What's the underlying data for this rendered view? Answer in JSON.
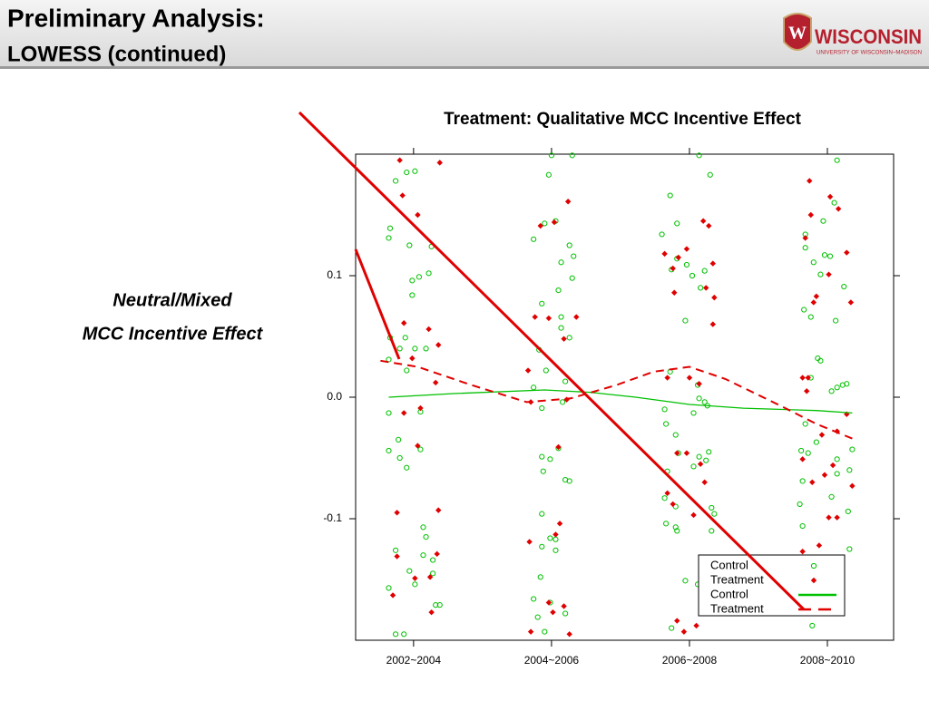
{
  "header": {
    "title": "Preliminary Analysis:",
    "subtitle": "LOWESS (continued)",
    "logo_mark": "W",
    "logo_name": "WISCONSIN",
    "logo_sub": "UNIVERSITY OF WISCONSIN–MADISON"
  },
  "side_note": [
    "Neutral/Mixed",
    "MCC  Incentive Effect"
  ],
  "chart_data": {
    "type": "scatter",
    "title": "Treatment: Qualitative MCC Incentive Effect",
    "xlim": [
      0.58,
      4.48
    ],
    "xticks": [
      {
        "value": 1,
        "label": "2002~2004"
      },
      {
        "value": 2,
        "label": "2004~2006"
      },
      {
        "value": 3,
        "label": "2006~2008"
      },
      {
        "value": 4,
        "label": "2008~2010"
      }
    ],
    "ylim": [
      -0.2,
      0.2
    ],
    "yticks": [
      -0.1,
      {
        "value": 0,
        "label": "0.0"
      },
      0.1
    ],
    "legend": "lower right",
    "series": [
      {
        "name": "Control",
        "type": "scatter",
        "marker": "circle",
        "color": "#00c000",
        "x": [
          0.87,
          0.95,
          1.01,
          0.83,
          0.82,
          0.97,
          1.13,
          1.04,
          0.99,
          1.11,
          0.99,
          0.83,
          0.94,
          0.9,
          1.01,
          1.09,
          0.82,
          0.95,
          0.82,
          1.05,
          0.89,
          0.82,
          1.05,
          0.9,
          0.95,
          1.07,
          1.09,
          0.87,
          1.07,
          1.14,
          0.97,
          1.14,
          0.82,
          1.01,
          1.16,
          1.19,
          0.87,
          0.93,
          2,
          2.15,
          1.98,
          1.87,
          1.95,
          2.03,
          2.13,
          2.07,
          2.15,
          2.05,
          2.16,
          1.93,
          2.07,
          2.07,
          2.13,
          1.91,
          1.96,
          2.1,
          1.87,
          2.08,
          1.93,
          2.05,
          1.93,
          1.99,
          1.94,
          2.1,
          2.13,
          1.93,
          2.03,
          1.99,
          1.93,
          2.03,
          1.92,
          1.87,
          1.99,
          2.1,
          1.9,
          1.95,
          3.07,
          3.15,
          2.86,
          2.91,
          2.8,
          2.91,
          2.98,
          3.11,
          3.02,
          2.87,
          3.08,
          2.97,
          2.86,
          3.06,
          3.07,
          3.11,
          3.13,
          3.03,
          2.82,
          2.9,
          2.83,
          2.92,
          3.07,
          3.12,
          3.03,
          2.84,
          3.14,
          2.82,
          2.9,
          3.16,
          3.18,
          2.83,
          2.91,
          3.16,
          2.9,
          2.97,
          3.06,
          2.87,
          4.07,
          4.05,
          3.97,
          3.84,
          3.84,
          3.98,
          4.02,
          3.9,
          3.95,
          4.12,
          3.83,
          3.88,
          4.06,
          3.93,
          3.95,
          4.03,
          4.07,
          4.11,
          4.14,
          3.88,
          3.84,
          3.81,
          3.86,
          3.92,
          4.18,
          4.07,
          4.16,
          3.82,
          4.07,
          4.03,
          3.8,
          4.15,
          3.82,
          3.9,
          4.16,
          3.89
        ],
        "values": [
          0.178,
          0.185,
          0.186,
          0.139,
          0.131,
          0.125,
          0.124,
          0.099,
          0.096,
          0.102,
          0.084,
          0.049,
          0.049,
          0.04,
          0.04,
          0.04,
          0.031,
          0.022,
          -0.013,
          -0.012,
          -0.035,
          -0.044,
          -0.043,
          -0.05,
          -0.058,
          -0.107,
          -0.115,
          -0.126,
          -0.13,
          -0.134,
          -0.143,
          -0.145,
          -0.157,
          -0.154,
          -0.171,
          -0.171,
          -0.195,
          -0.195,
          0.199,
          0.199,
          0.183,
          0.13,
          0.143,
          0.145,
          0.125,
          0.111,
          0.098,
          0.088,
          0.116,
          0.077,
          0.066,
          0.057,
          0.049,
          0.039,
          0.022,
          0.013,
          0.008,
          -0.004,
          -0.009,
          -0.042,
          -0.049,
          -0.051,
          -0.061,
          -0.068,
          -0.069,
          -0.096,
          -0.117,
          -0.116,
          -0.123,
          -0.126,
          -0.148,
          -0.166,
          -0.169,
          -0.178,
          -0.181,
          -0.193,
          0.199,
          0.183,
          0.166,
          0.143,
          0.134,
          0.114,
          0.109,
          0.104,
          0.1,
          0.105,
          0.09,
          0.063,
          0.021,
          0.01,
          -0.001,
          -0.004,
          -0.007,
          -0.013,
          -0.01,
          -0.031,
          -0.022,
          -0.046,
          -0.049,
          -0.052,
          -0.057,
          -0.061,
          -0.045,
          -0.083,
          -0.09,
          -0.091,
          -0.096,
          -0.104,
          -0.11,
          -0.11,
          -0.107,
          -0.151,
          -0.154,
          -0.19,
          0.195,
          0.16,
          0.145,
          0.134,
          0.123,
          0.117,
          0.116,
          0.111,
          0.101,
          0.091,
          0.072,
          0.066,
          0.063,
          0.032,
          0.03,
          0.005,
          0.008,
          0.01,
          0.011,
          0.016,
          -0.022,
          -0.044,
          -0.046,
          -0.037,
          -0.043,
          -0.051,
          -0.06,
          -0.069,
          -0.063,
          -0.082,
          -0.088,
          -0.094,
          -0.106,
          -0.136,
          -0.125,
          -0.188
        ]
      },
      {
        "name": "Treatment",
        "type": "scatter",
        "marker": "diamond",
        "color": "#e00000",
        "x": [
          0.9,
          1.19,
          0.92,
          1.03,
          0.93,
          1.11,
          1.18,
          0.99,
          1.16,
          0.93,
          1.05,
          1.03,
          0.88,
          1.18,
          0.88,
          1.17,
          1.01,
          1.12,
          0.85,
          1.13,
          2.12,
          1.92,
          2.02,
          1.88,
          1.98,
          2.18,
          2.09,
          1.83,
          1.85,
          2.11,
          2.05,
          2.06,
          1.84,
          2.03,
          1.98,
          2.09,
          2.01,
          1.85,
          2.13,
          2.98,
          2.82,
          2.92,
          3.1,
          3.14,
          3.17,
          2.88,
          3.12,
          2.89,
          3.18,
          3.17,
          3,
          2.84,
          3.07,
          2.91,
          2.98,
          3.08,
          3.11,
          2.84,
          2.88,
          3.03,
          2.91,
          3.05,
          2.96,
          3.87,
          4.02,
          3.88,
          4.08,
          3.84,
          4.14,
          4.01,
          3.92,
          3.9,
          4.17,
          3.82,
          3.86,
          3.85,
          4.14,
          3.96,
          4.07,
          3.82,
          4.04,
          3.98,
          4.18,
          3.89,
          4.01,
          4.07,
          3.82,
          3.94
        ],
        "values": [
          0.195,
          0.193,
          0.166,
          0.15,
          0.061,
          0.056,
          0.043,
          0.032,
          0.012,
          -0.013,
          -0.009,
          -0.04,
          -0.095,
          -0.093,
          -0.131,
          -0.129,
          -0.149,
          -0.148,
          -0.163,
          -0.177,
          0.161,
          0.141,
          0.144,
          0.066,
          0.065,
          0.066,
          0.048,
          0.022,
          -0.004,
          -0.002,
          -0.041,
          -0.104,
          -0.119,
          -0.113,
          -0.169,
          -0.172,
          -0.177,
          -0.193,
          -0.195,
          0.122,
          0.118,
          0.115,
          0.145,
          0.141,
          0.11,
          0.106,
          0.09,
          0.086,
          0.082,
          0.06,
          0.016,
          0.016,
          0.011,
          -0.046,
          -0.046,
          -0.055,
          -0.07,
          -0.079,
          -0.088,
          -0.097,
          -0.184,
          -0.188,
          -0.193,
          0.178,
          0.165,
          0.15,
          0.155,
          0.131,
          0.119,
          0.101,
          0.083,
          0.078,
          0.078,
          0.016,
          0.016,
          0.005,
          -0.014,
          -0.031,
          -0.028,
          -0.051,
          -0.056,
          -0.064,
          -0.073,
          -0.07,
          -0.099,
          -0.099,
          -0.127,
          -0.122
        ]
      },
      {
        "name": "Control",
        "type": "line",
        "color": "#00c000",
        "x": [
          0.82,
          1.29,
          1.95,
          2.28,
          2.61,
          3,
          3.39,
          3.92,
          4.18
        ],
        "values": [
          0,
          0.003,
          0.006,
          0.004,
          0,
          -0.006,
          -0.009,
          -0.011,
          -0.013
        ]
      },
      {
        "name": "Treatment",
        "type": "line",
        "dash": "dashed",
        "color": "#e00000",
        "x": [
          0.76,
          1.03,
          1.42,
          1.82,
          2.14,
          2.47,
          2.74,
          3,
          3.26,
          3.66,
          3.92,
          4.18
        ],
        "values": [
          0.03,
          0.025,
          0.01,
          -0.004,
          -0.001,
          0.01,
          0.021,
          0.025,
          0.015,
          -0.007,
          -0.022,
          -0.034
        ]
      }
    ]
  }
}
